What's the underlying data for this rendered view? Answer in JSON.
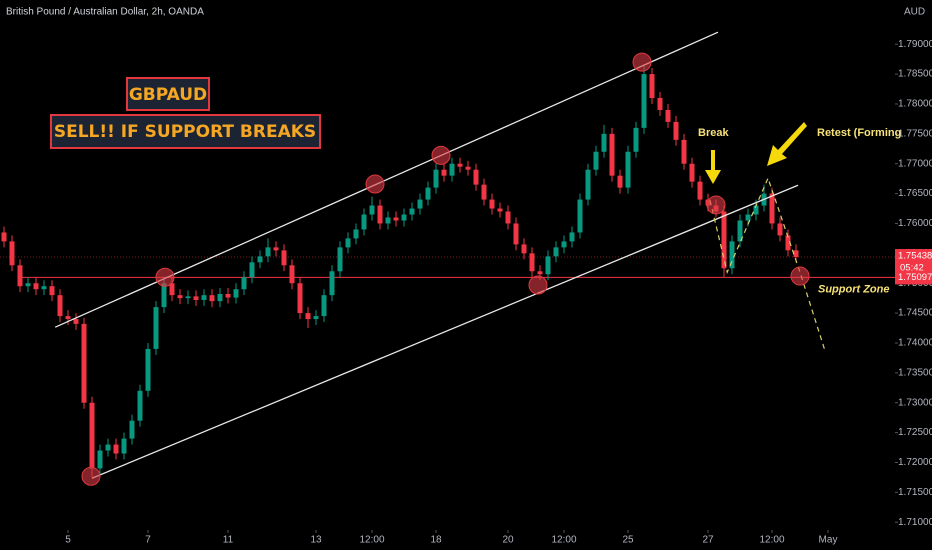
{
  "chart_data": {
    "type": "candlestick",
    "title": "British Pound / Australian Dollar, 2h, OANDA",
    "currency": "AUD",
    "up_color": "#089981",
    "down_color": "#f23645",
    "open": [
      1.7585,
      1.757,
      1.753,
      1.7495,
      1.75,
      1.749,
      1.7495,
      1.748,
      1.7445,
      1.744,
      1.7432,
      1.73,
      1.719,
      1.722,
      1.723,
      1.7215,
      1.724,
      1.727,
      1.732,
      1.739,
      1.746,
      1.75,
      1.748,
      1.7475,
      1.7478,
      1.7472,
      1.748,
      1.747,
      1.7482,
      1.7476,
      1.749,
      1.751,
      1.7535,
      1.7545,
      1.756,
      1.7555,
      1.753,
      1.75,
      1.745,
      1.744,
      1.7445,
      1.748,
      1.752,
      1.756,
      1.7575,
      1.759,
      1.7615,
      1.763,
      1.76,
      1.761,
      1.7605,
      1.7615,
      1.7625,
      1.764,
      1.766,
      1.769,
      1.768,
      1.77,
      1.7695,
      1.769,
      1.7665,
      1.764,
      1.7625,
      1.762,
      1.76,
      1.7565,
      1.755,
      1.752,
      1.7515,
      1.7545,
      1.756,
      1.757,
      1.7585,
      1.764,
      1.769,
      1.772,
      1.775,
      1.768,
      1.766,
      1.772,
      1.776,
      1.785,
      1.781,
      1.779,
      1.777,
      1.774,
      1.77,
      1.767,
      1.764,
      1.763,
      1.762,
      1.7525,
      1.757,
      1.7605,
      1.7615,
      1.763,
      1.765,
      1.76,
      1.758,
      1.7555
    ],
    "high": [
      1.7595,
      1.758,
      1.754,
      1.751,
      1.751,
      1.7505,
      1.7505,
      1.749,
      1.7455,
      1.745,
      1.7442,
      1.731,
      1.723,
      1.724,
      1.724,
      1.725,
      1.728,
      1.733,
      1.74,
      1.747,
      1.751,
      1.751,
      1.749,
      1.7488,
      1.7488,
      1.749,
      1.749,
      1.7492,
      1.7492,
      1.75,
      1.752,
      1.7545,
      1.7555,
      1.7575,
      1.757,
      1.7565,
      1.754,
      1.751,
      1.746,
      1.7455,
      1.749,
      1.753,
      1.757,
      1.7585,
      1.76,
      1.7625,
      1.7645,
      1.764,
      1.762,
      1.762,
      1.7625,
      1.7635,
      1.765,
      1.767,
      1.77,
      1.77,
      1.771,
      1.771,
      1.7705,
      1.77,
      1.7675,
      1.765,
      1.7635,
      1.763,
      1.761,
      1.7575,
      1.756,
      1.753,
      1.7555,
      1.757,
      1.758,
      1.7595,
      1.765,
      1.77,
      1.773,
      1.7765,
      1.776,
      1.769,
      1.773,
      1.777,
      1.7865,
      1.786,
      1.782,
      1.78,
      1.778,
      1.775,
      1.771,
      1.768,
      1.765,
      1.764,
      1.763,
      1.758,
      1.7615,
      1.7625,
      1.764,
      1.7665,
      1.766,
      1.761,
      1.759,
      1.7565
    ],
    "low": [
      1.756,
      1.752,
      1.7485,
      1.7485,
      1.748,
      1.748,
      1.747,
      1.7435,
      1.743,
      1.7422,
      1.729,
      1.7175,
      1.718,
      1.721,
      1.7205,
      1.7205,
      1.723,
      1.726,
      1.731,
      1.738,
      1.745,
      1.747,
      1.7465,
      1.7465,
      1.7462,
      1.7462,
      1.746,
      1.746,
      1.7466,
      1.7466,
      1.748,
      1.75,
      1.7525,
      1.7535,
      1.7545,
      1.752,
      1.749,
      1.744,
      1.7425,
      1.743,
      1.7435,
      1.747,
      1.751,
      1.755,
      1.7565,
      1.758,
      1.7605,
      1.759,
      1.759,
      1.7595,
      1.7595,
      1.7605,
      1.7615,
      1.763,
      1.765,
      1.767,
      1.767,
      1.7685,
      1.768,
      1.7655,
      1.763,
      1.7615,
      1.761,
      1.759,
      1.7555,
      1.754,
      1.751,
      1.7505,
      1.7505,
      1.7535,
      1.755,
      1.756,
      1.7575,
      1.763,
      1.768,
      1.771,
      1.767,
      1.765,
      1.765,
      1.771,
      1.775,
      1.78,
      1.778,
      1.776,
      1.773,
      1.769,
      1.766,
      1.763,
      1.762,
      1.761,
      1.751,
      1.7515,
      1.756,
      1.7595,
      1.7605,
      1.762,
      1.759,
      1.757,
      1.7545,
      1.7535
    ],
    "close": [
      1.757,
      1.753,
      1.7495,
      1.75,
      1.749,
      1.7495,
      1.748,
      1.7445,
      1.744,
      1.7432,
      1.73,
      1.719,
      1.722,
      1.723,
      1.7215,
      1.724,
      1.727,
      1.732,
      1.739,
      1.746,
      1.75,
      1.748,
      1.7475,
      1.7478,
      1.7472,
      1.748,
      1.747,
      1.7482,
      1.7476,
      1.749,
      1.751,
      1.7535,
      1.7545,
      1.756,
      1.7555,
      1.753,
      1.75,
      1.745,
      1.744,
      1.7445,
      1.748,
      1.752,
      1.756,
      1.7575,
      1.759,
      1.7615,
      1.763,
      1.76,
      1.761,
      1.7605,
      1.7615,
      1.7625,
      1.764,
      1.766,
      1.769,
      1.768,
      1.77,
      1.7695,
      1.769,
      1.7665,
      1.764,
      1.7625,
      1.762,
      1.76,
      1.7565,
      1.755,
      1.752,
      1.7515,
      1.7545,
      1.756,
      1.757,
      1.7585,
      1.764,
      1.769,
      1.772,
      1.775,
      1.768,
      1.766,
      1.772,
      1.776,
      1.785,
      1.781,
      1.779,
      1.777,
      1.774,
      1.77,
      1.767,
      1.764,
      1.763,
      1.762,
      1.7525,
      1.757,
      1.7605,
      1.7615,
      1.763,
      1.765,
      1.76,
      1.758,
      1.7555,
      1.75438
    ],
    "xlim": [
      -0.5,
      111.375
    ],
    "xticks": [
      {
        "value": 8,
        "label": "5"
      },
      {
        "value": 18,
        "label": "7"
      },
      {
        "value": 28,
        "label": "11"
      },
      {
        "value": 39,
        "label": "13"
      },
      {
        "value": 46,
        "label": "12:00"
      },
      {
        "value": 54,
        "label": "18"
      },
      {
        "value": 63,
        "label": "20"
      },
      {
        "value": 70,
        "label": "12:00"
      },
      {
        "value": 78,
        "label": "25"
      },
      {
        "value": 88,
        "label": "27"
      },
      {
        "value": 96,
        "label": "12:00"
      },
      {
        "value": 103,
        "label": "May"
      }
    ],
    "ylim": [
      1.7087,
      1.7974
    ],
    "yticks": [
      {
        "value": 1.71,
        "label": "1.71000"
      },
      {
        "value": 1.715,
        "label": "1.71500"
      },
      {
        "value": 1.72,
        "label": "1.72000"
      },
      {
        "value": 1.725,
        "label": "1.72500"
      },
      {
        "value": 1.73,
        "label": "1.73000"
      },
      {
        "value": 1.735,
        "label": "1.73500"
      },
      {
        "value": 1.74,
        "label": "1.74000"
      },
      {
        "value": 1.745,
        "label": "1.74500"
      },
      {
        "value": 1.75,
        "label": "1.75000"
      },
      {
        "value": 1.755,
        "label": "1.75500"
      },
      {
        "value": 1.76,
        "label": "1.76000"
      },
      {
        "value": 1.765,
        "label": "1.76500"
      },
      {
        "value": 1.77,
        "label": "1.77000"
      },
      {
        "value": 1.775,
        "label": "1.77500"
      },
      {
        "value": 1.78,
        "label": "1.78000"
      },
      {
        "value": 1.785,
        "label": "1.78500"
      },
      {
        "value": 1.79,
        "label": "1.79000"
      }
    ],
    "last_price": 1.75438,
    "countdown": "05:42",
    "support_level": 1.75097,
    "support_label": "Support Zone",
    "channel_upper": {
      "x": [
        6.4,
        89.25
      ],
      "y": [
        1.74264,
        1.79201
      ]
    },
    "channel_lower": {
      "x": [
        11,
        99.25
      ],
      "y": [
        1.71736,
        1.7664
      ]
    },
    "projection": {
      "x": [
        88.25,
        90.4,
        95.5,
        99.5,
        102.6
      ],
      "y": [
        1.76389,
        1.75184,
        1.76757,
        1.75184,
        1.7388
      ]
    },
    "markers": {
      "x": [
        10.875,
        20.125,
        46.375,
        54.625,
        66.75,
        79.75,
        89,
        99.5
      ],
      "y": [
        1.7177,
        1.751,
        1.7666,
        1.7714,
        1.7497,
        1.787,
        1.7631,
        1.7512
      ]
    },
    "annotations": {
      "symbol": "GBPAUD",
      "call": "SELL!! IF SUPPORT BREAKS",
      "break": "Break",
      "retest": "Retest (Forming"
    }
  }
}
